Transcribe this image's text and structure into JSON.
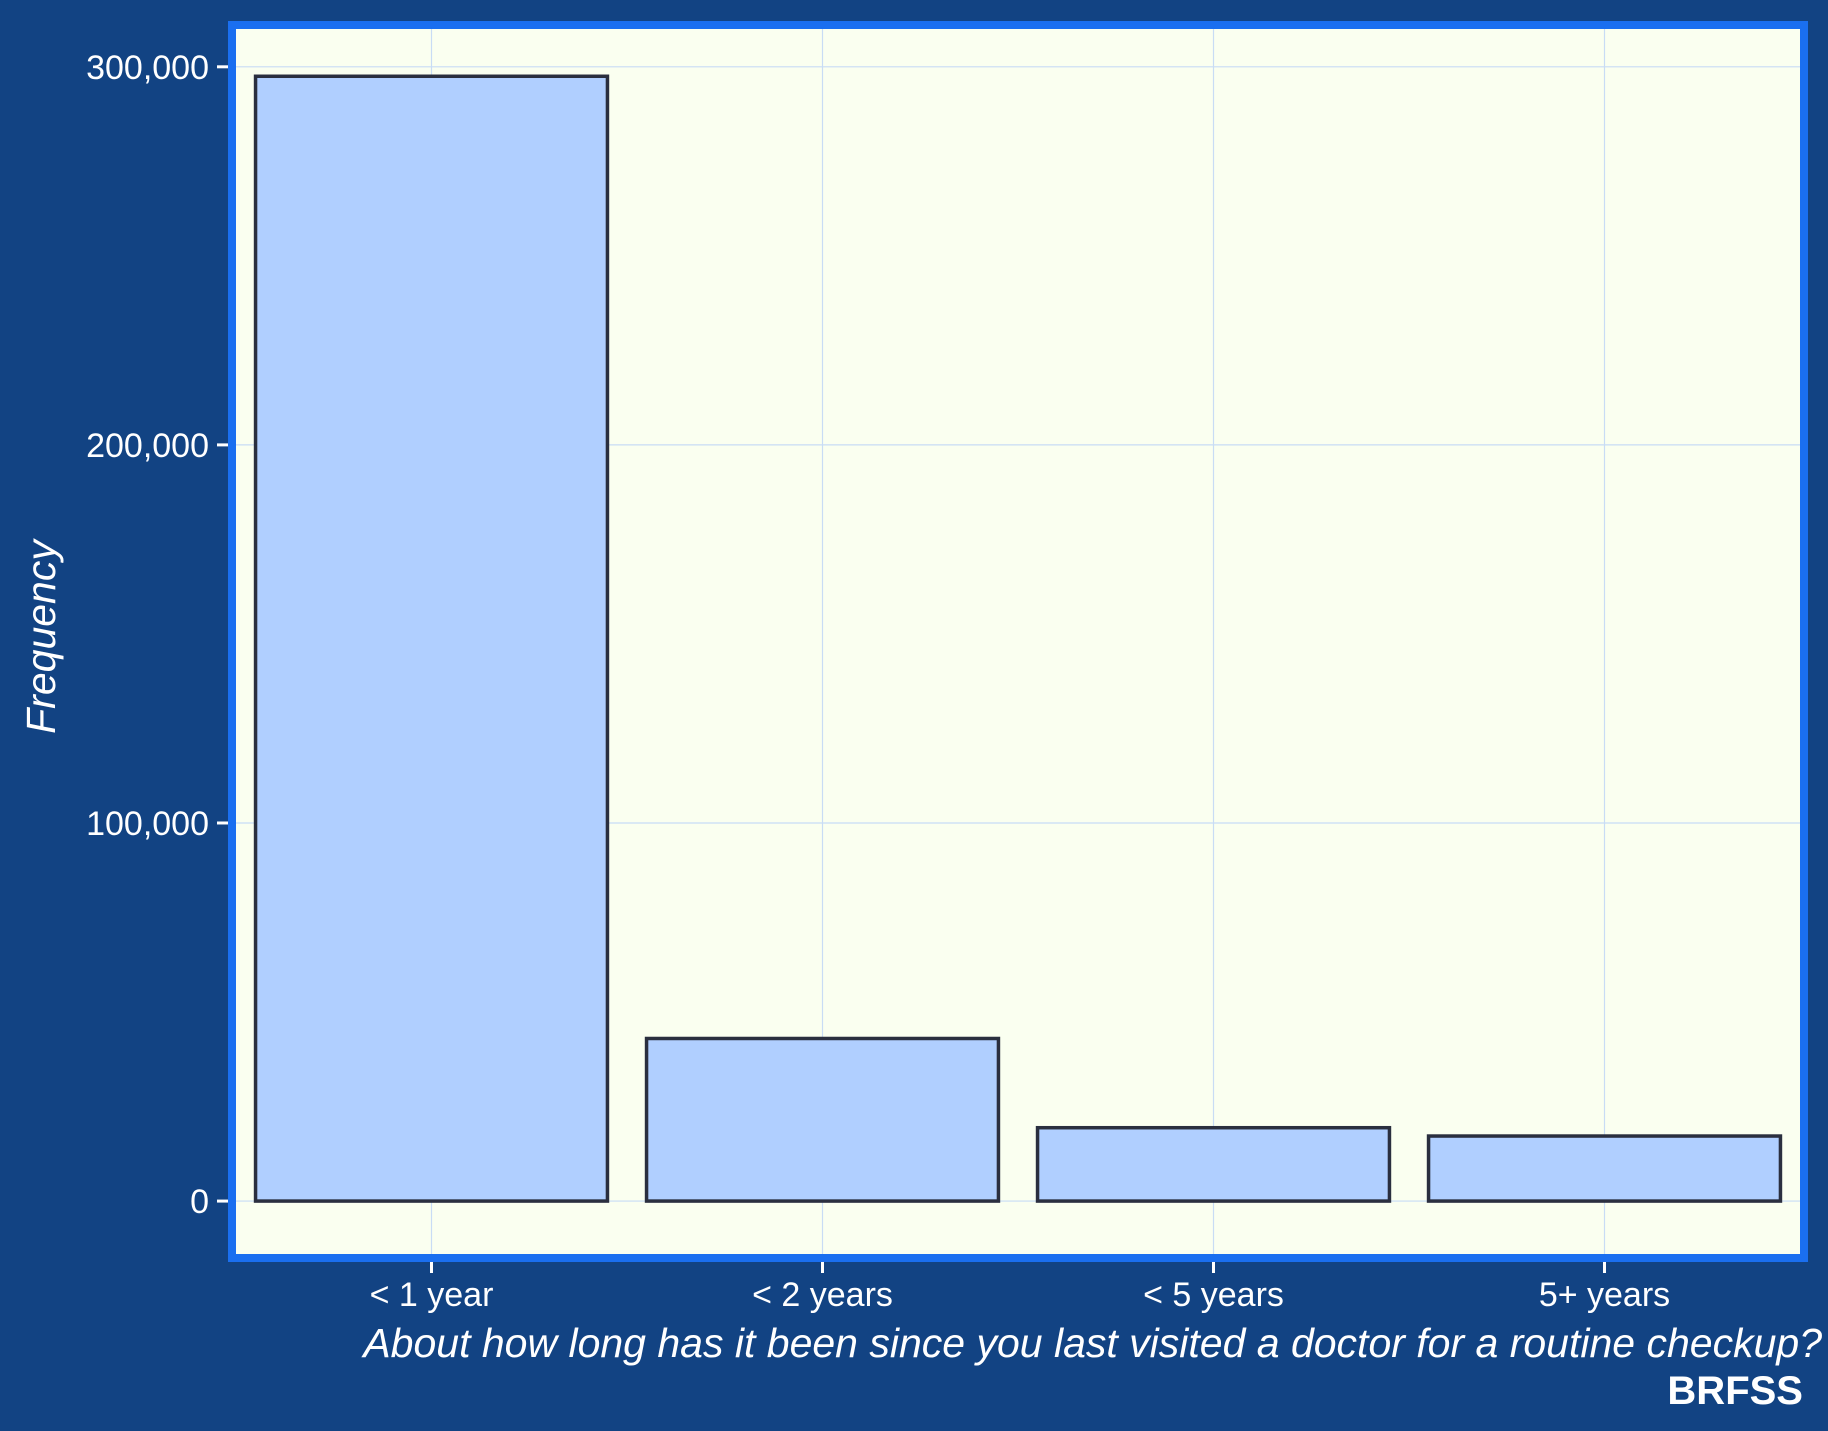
{
  "chart_data": {
    "type": "bar",
    "categories": [
      "< 1 year",
      "< 2 years",
      "< 5 years",
      "5+ years"
    ],
    "values": [
      297500,
      43000,
      19400,
      17200
    ],
    "xlabel": "About how long has it been since you last visited a doctor for a routine checkup?",
    "ylabel": "Frequency",
    "caption": "BRFSS",
    "ylim": [
      -14000,
      310000
    ],
    "yticks": [
      0,
      100000,
      200000,
      300000
    ],
    "ytick_labels": [
      "0",
      "100,000",
      "200,000",
      "300,000"
    ],
    "grid": true,
    "colors": {
      "page_background": "#124383",
      "panel_background": "#fafff0",
      "panel_border": "#1a6ff0",
      "bar_fill": "#b0cfff",
      "bar_outline": "#2a2f3f",
      "grid": "#c8dcf5",
      "text": "#ffffff"
    }
  }
}
